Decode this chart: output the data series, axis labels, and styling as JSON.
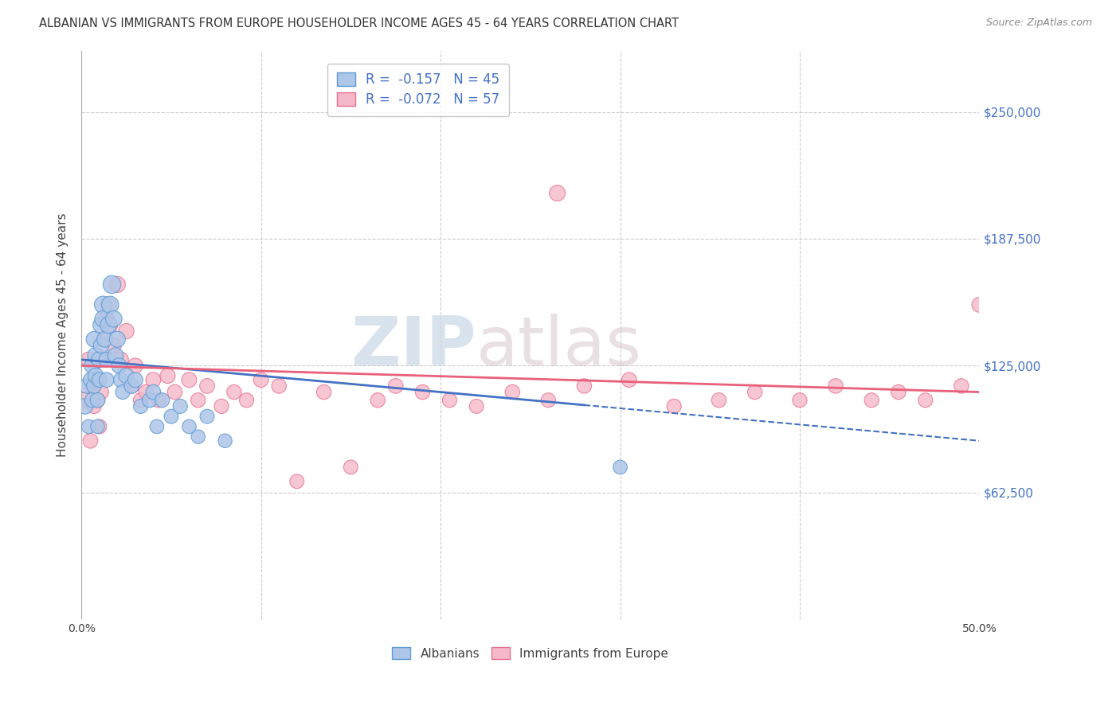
{
  "title": "ALBANIAN VS IMMIGRANTS FROM EUROPE HOUSEHOLDER INCOME AGES 45 - 64 YEARS CORRELATION CHART",
  "source": "Source: ZipAtlas.com",
  "ylabel": "Householder Income Ages 45 - 64 years",
  "xlim": [
    0.0,
    0.5
  ],
  "ylim": [
    0,
    280000
  ],
  "xticks": [
    0.0,
    0.1,
    0.2,
    0.3,
    0.4,
    0.5
  ],
  "xticklabels": [
    "0.0%",
    "",
    "",
    "",
    "",
    "50.0%"
  ],
  "ytick_positions": [
    62500,
    125000,
    187500,
    250000
  ],
  "ytick_labels": [
    "$62,500",
    "$125,000",
    "$187,500",
    "$250,000"
  ],
  "bg_color": "#ffffff",
  "grid_color": "#cccccc",
  "albanians_color": "#aec6e8",
  "albanians_edge": "#5b9bd5",
  "immigrants_color": "#f4b8c8",
  "immigrants_edge": "#e87090",
  "legend_R_albanians": "R =  -0.157",
  "legend_N_albanians": "N = 45",
  "legend_R_immigrants": "R =  -0.072",
  "legend_N_immigrants": "N = 57",
  "line_albanians_color": "#4472c4",
  "line_albanians_solid_end": 0.28,
  "line_albanians_dash_end": 0.5,
  "line_immigrants_color": "#e8607a",
  "line_immigrants_solid_end": 0.5,
  "watermark_zip": "ZIP",
  "watermark_atlas": "atlas",
  "albanians_x": [
    0.002,
    0.003,
    0.004,
    0.005,
    0.006,
    0.006,
    0.007,
    0.007,
    0.008,
    0.008,
    0.009,
    0.009,
    0.01,
    0.01,
    0.011,
    0.011,
    0.012,
    0.012,
    0.013,
    0.014,
    0.014,
    0.015,
    0.016,
    0.017,
    0.018,
    0.019,
    0.02,
    0.021,
    0.022,
    0.023,
    0.025,
    0.028,
    0.03,
    0.033,
    0.038,
    0.04,
    0.042,
    0.045,
    0.05,
    0.055,
    0.06,
    0.065,
    0.07,
    0.08,
    0.3
  ],
  "albanians_y": [
    105000,
    115000,
    95000,
    118000,
    125000,
    108000,
    138000,
    115000,
    130000,
    120000,
    108000,
    95000,
    128000,
    118000,
    145000,
    135000,
    155000,
    148000,
    138000,
    128000,
    118000,
    145000,
    155000,
    165000,
    148000,
    130000,
    138000,
    125000,
    118000,
    112000,
    120000,
    115000,
    118000,
    105000,
    108000,
    112000,
    95000,
    108000,
    100000,
    105000,
    95000,
    90000,
    100000,
    88000,
    75000
  ],
  "albanians_size": [
    200,
    180,
    160,
    170,
    200,
    180,
    200,
    180,
    220,
    200,
    180,
    160,
    200,
    180,
    220,
    200,
    240,
    220,
    200,
    190,
    180,
    220,
    240,
    260,
    220,
    200,
    210,
    190,
    180,
    170,
    190,
    180,
    185,
    170,
    175,
    180,
    160,
    170,
    165,
    170,
    160,
    155,
    165,
    155,
    160
  ],
  "immigrants_x": [
    0.002,
    0.004,
    0.005,
    0.006,
    0.007,
    0.008,
    0.009,
    0.01,
    0.011,
    0.012,
    0.013,
    0.014,
    0.015,
    0.016,
    0.018,
    0.02,
    0.022,
    0.025,
    0.028,
    0.03,
    0.033,
    0.036,
    0.04,
    0.043,
    0.048,
    0.052,
    0.06,
    0.065,
    0.07,
    0.078,
    0.085,
    0.092,
    0.1,
    0.11,
    0.12,
    0.135,
    0.15,
    0.165,
    0.175,
    0.19,
    0.205,
    0.22,
    0.24,
    0.26,
    0.28,
    0.305,
    0.33,
    0.355,
    0.375,
    0.4,
    0.42,
    0.44,
    0.455,
    0.47,
    0.49,
    0.5,
    0.265
  ],
  "immigrants_y": [
    108000,
    128000,
    88000,
    115000,
    105000,
    118000,
    108000,
    95000,
    112000,
    128000,
    138000,
    148000,
    155000,
    145000,
    135000,
    165000,
    128000,
    142000,
    115000,
    125000,
    108000,
    112000,
    118000,
    108000,
    120000,
    112000,
    118000,
    108000,
    115000,
    105000,
    112000,
    108000,
    118000,
    115000,
    68000,
    112000,
    75000,
    108000,
    115000,
    112000,
    108000,
    105000,
    112000,
    108000,
    115000,
    118000,
    105000,
    108000,
    112000,
    108000,
    115000,
    108000,
    112000,
    108000,
    115000,
    155000,
    210000
  ],
  "immigrants_size": [
    200,
    190,
    180,
    185,
    175,
    185,
    175,
    170,
    180,
    185,
    190,
    200,
    200,
    195,
    190,
    210,
    185,
    195,
    180,
    190,
    175,
    180,
    185,
    175,
    185,
    180,
    185,
    175,
    180,
    170,
    175,
    170,
    180,
    175,
    165,
    175,
    165,
    175,
    180,
    175,
    170,
    165,
    175,
    170,
    175,
    180,
    170,
    175,
    175,
    170,
    175,
    170,
    175,
    170,
    175,
    185,
    205
  ]
}
